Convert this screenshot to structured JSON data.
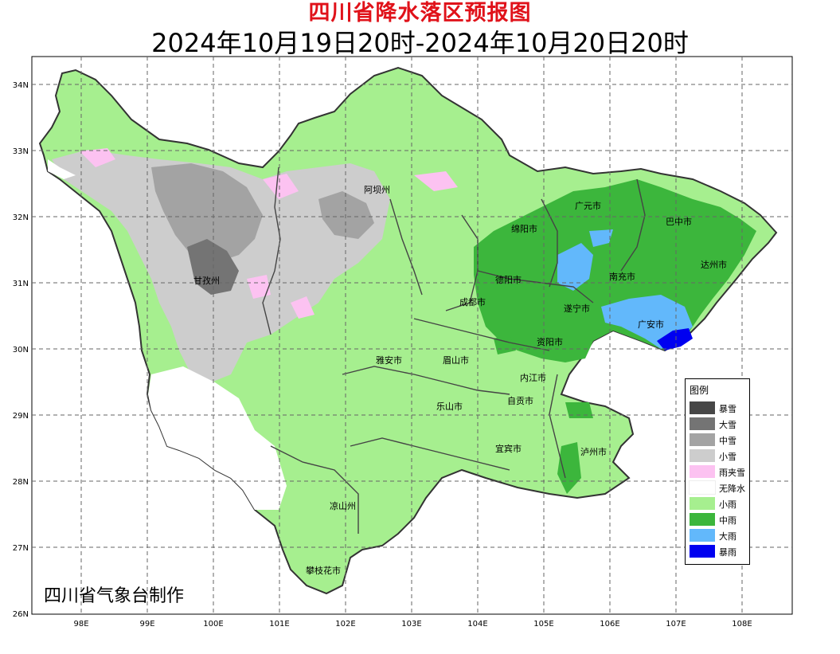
{
  "title": "四川省降水落区预报图",
  "subtitle": "2024年10月19日20时-2024年10月20日20时",
  "credit": "四川省气象台制作",
  "axes": {
    "lon_ticks": [
      "98E",
      "99E",
      "100E",
      "101E",
      "102E",
      "103E",
      "104E",
      "105E",
      "106E",
      "107E",
      "108E"
    ],
    "lat_ticks": [
      "34N",
      "33N",
      "32N",
      "31N",
      "30N",
      "29N",
      "28N",
      "27N",
      "26N"
    ]
  },
  "regions": [
    {
      "name": "阿坝州"
    },
    {
      "name": "甘孜州"
    },
    {
      "name": "绵阳市"
    },
    {
      "name": "广元市"
    },
    {
      "name": "巴中市"
    },
    {
      "name": "达州市"
    },
    {
      "name": "德阳市"
    },
    {
      "name": "南充市"
    },
    {
      "name": "成都市"
    },
    {
      "name": "遂宁市"
    },
    {
      "name": "广安市"
    },
    {
      "name": "资阳市"
    },
    {
      "name": "雅安市"
    },
    {
      "name": "眉山市"
    },
    {
      "name": "内江市"
    },
    {
      "name": "乐山市"
    },
    {
      "name": "自贡市"
    },
    {
      "name": "宜宾市"
    },
    {
      "name": "泸州市"
    },
    {
      "name": "凉山州"
    },
    {
      "name": "攀枝花市"
    }
  ],
  "legend": {
    "title": "图例",
    "items": [
      {
        "label": "暴雪",
        "color": "#474747"
      },
      {
        "label": "大雪",
        "color": "#747474"
      },
      {
        "label": "中雪",
        "color": "#a3a3a3"
      },
      {
        "label": "小雪",
        "color": "#cdcdcd"
      },
      {
        "label": "雨夹雪",
        "color": "#fcc2f1"
      },
      {
        "label": "无降水",
        "color": "#ffffff"
      },
      {
        "label": "小雨",
        "color": "#a6ef8f"
      },
      {
        "label": "中雨",
        "color": "#3cb63c"
      },
      {
        "label": "大雨",
        "color": "#62b8fb"
      },
      {
        "label": "暴雨",
        "color": "#0000f0"
      }
    ]
  }
}
